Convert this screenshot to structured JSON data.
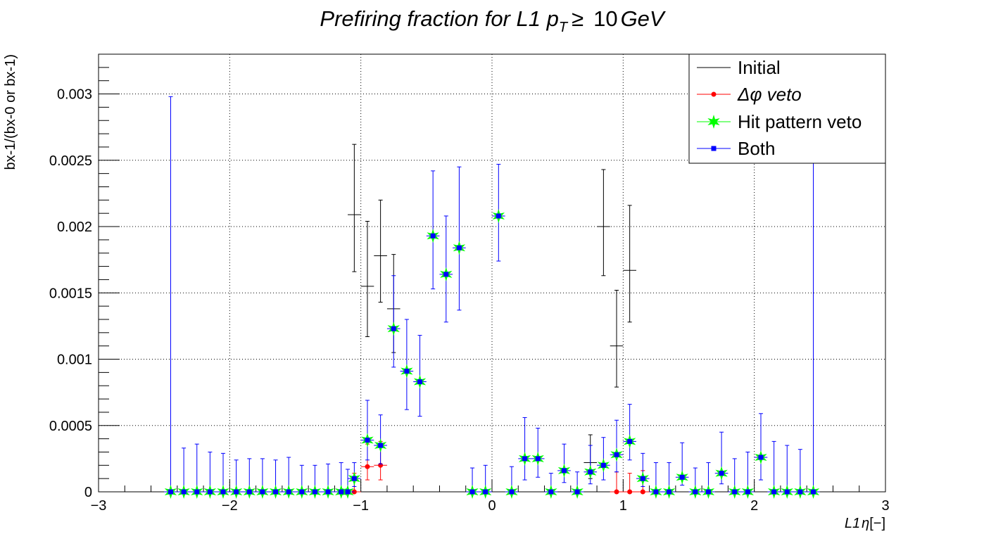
{
  "chart_data": {
    "type": "scatter",
    "title": {
      "prefix": "Prefiring fraction for ",
      "var": "L1 p",
      "sub": "T",
      "rel": "≥",
      "num": "10",
      "unit": "GeV"
    },
    "xlabel": {
      "prefix": "L1",
      "sym": "η",
      "suffix": "[−]"
    },
    "ylabel": "bx-1/(bx-0 or bx-1)",
    "xlim": [
      -3,
      3
    ],
    "ylim": [
      0,
      0.0033
    ],
    "grid": true,
    "legend_position": "top-right",
    "x_ticks": [
      -3,
      -2,
      -1,
      0,
      1,
      2,
      3
    ],
    "x_tick_labels": [
      "−3",
      "−2",
      "−1",
      "0",
      "1",
      "2",
      "3"
    ],
    "y_ticks": [
      0,
      0.0005,
      0.001,
      0.0015,
      0.002,
      0.0025,
      0.003
    ],
    "y_tick_labels": [
      "0",
      "0.0005",
      "0.001",
      "0.0015",
      "0.002",
      "0.0025",
      "0.003"
    ],
    "bin_half_width": 0.05,
    "series": [
      {
        "name": "Initial",
        "color": "#000000",
        "marker": "none",
        "points": [
          {
            "x": -1.05,
            "y": 0.00209,
            "lo": 0.00166,
            "hi": 0.00262
          },
          {
            "x": -0.95,
            "y": 0.00155,
            "lo": 0.00117,
            "hi": 0.00204
          },
          {
            "x": -0.85,
            "y": 0.00178,
            "lo": 0.00143,
            "hi": 0.0022
          },
          {
            "x": -0.75,
            "y": 0.00138,
            "lo": 0.00105,
            "hi": 0.00179
          },
          {
            "x": 0.85,
            "y": 0.002,
            "lo": 0.00163,
            "hi": 0.00243
          },
          {
            "x": 0.95,
            "y": 0.0011,
            "lo": 0.00079,
            "hi": 0.00152
          },
          {
            "x": 1.05,
            "y": 0.00167,
            "lo": 0.00128,
            "hi": 0.00216
          },
          {
            "x": 0.75,
            "y": 0.00022,
            "lo": 0.0001,
            "hi": 0.00043
          }
        ]
      },
      {
        "name": "Δφ veto",
        "color": "#ff0000",
        "marker": "circle",
        "points": [
          {
            "x": -1.05,
            "y": 0.0,
            "lo": 0.0,
            "hi": 0.00014
          },
          {
            "x": -0.95,
            "y": 0.00019,
            "lo": 9e-05,
            "hi": 0.00036
          },
          {
            "x": -0.85,
            "y": 0.0002,
            "lo": 9e-05,
            "hi": 0.00038
          },
          {
            "x": 0.95,
            "y": 0.0,
            "lo": 0.0,
            "hi": 0.00015
          },
          {
            "x": 1.05,
            "y": 0.0,
            "lo": 0.0,
            "hi": 0.00014
          },
          {
            "x": 1.15,
            "y": 0.0,
            "lo": 0.0,
            "hi": 0.00016
          }
        ]
      },
      {
        "name": "Hit pattern veto",
        "color": "#00ff00",
        "marker": "star",
        "same_as": "Both"
      },
      {
        "name": "Both",
        "color": "#0000ff",
        "marker": "square",
        "points": [
          {
            "x": -2.45,
            "y": 0.0,
            "lo": 0.0,
            "hi": 0.00298
          },
          {
            "x": -2.35,
            "y": 0.0,
            "lo": 0.0,
            "hi": 0.00033
          },
          {
            "x": -2.25,
            "y": 0.0,
            "lo": 0.0,
            "hi": 0.00036
          },
          {
            "x": -2.15,
            "y": 0.0,
            "lo": 0.0,
            "hi": 0.0003
          },
          {
            "x": -2.05,
            "y": 0.0,
            "lo": 0.0,
            "hi": 0.00029
          },
          {
            "x": -1.95,
            "y": 0.0,
            "lo": 0.0,
            "hi": 0.00024
          },
          {
            "x": -1.85,
            "y": 0.0,
            "lo": 0.0,
            "hi": 0.00025
          },
          {
            "x": -1.75,
            "y": 0.0,
            "lo": 0.0,
            "hi": 0.00025
          },
          {
            "x": -1.65,
            "y": 0.0,
            "lo": 0.0,
            "hi": 0.00024
          },
          {
            "x": -1.55,
            "y": 0.0,
            "lo": 0.0,
            "hi": 0.00026
          },
          {
            "x": -1.45,
            "y": 0.0,
            "lo": 0.0,
            "hi": 0.0002
          },
          {
            "x": -1.35,
            "y": 0.0,
            "lo": 0.0,
            "hi": 0.0002
          },
          {
            "x": -1.25,
            "y": 0.0,
            "lo": 0.0,
            "hi": 0.00021
          },
          {
            "x": -1.15,
            "y": 0.0,
            "lo": 0.0,
            "hi": 0.00022
          },
          {
            "x": -1.1,
            "y": 0.0,
            "lo": 0.0,
            "hi": 0.00017
          },
          {
            "x": -1.05,
            "y": 0.0001,
            "lo": 4e-05,
            "hi": 0.00022
          },
          {
            "x": -0.95,
            "y": 0.00039,
            "lo": 0.00024,
            "hi": 0.00069
          },
          {
            "x": -0.85,
            "y": 0.00035,
            "lo": 0.00021,
            "hi": 0.00058
          },
          {
            "x": -0.75,
            "y": 0.00123,
            "lo": 0.00094,
            "hi": 0.00163
          },
          {
            "x": -0.65,
            "y": 0.00091,
            "lo": 0.00062,
            "hi": 0.0013
          },
          {
            "x": -0.55,
            "y": 0.00083,
            "lo": 0.00057,
            "hi": 0.00118
          },
          {
            "x": -0.45,
            "y": 0.00193,
            "lo": 0.00153,
            "hi": 0.00242
          },
          {
            "x": -0.35,
            "y": 0.00164,
            "lo": 0.00128,
            "hi": 0.00208
          },
          {
            "x": -0.25,
            "y": 0.00184,
            "lo": 0.00137,
            "hi": 0.00245
          },
          {
            "x": -0.15,
            "y": 0.0,
            "lo": 0.0,
            "hi": 0.00018
          },
          {
            "x": -0.05,
            "y": 0.0,
            "lo": 0.0,
            "hi": 0.0002
          },
          {
            "x": 0.05,
            "y": 0.00208,
            "lo": 0.00174,
            "hi": 0.00247
          },
          {
            "x": 0.15,
            "y": 0.0,
            "lo": 0.0,
            "hi": 0.00019
          },
          {
            "x": 0.25,
            "y": 0.00025,
            "lo": 9e-05,
            "hi": 0.00056
          },
          {
            "x": 0.35,
            "y": 0.00025,
            "lo": 0.00011,
            "hi": 0.00048
          },
          {
            "x": 0.45,
            "y": 0.0,
            "lo": 0.0,
            "hi": 0.00014
          },
          {
            "x": 0.55,
            "y": 0.00016,
            "lo": 7e-05,
            "hi": 0.00036
          },
          {
            "x": 0.65,
            "y": 0.0,
            "lo": 0.0,
            "hi": 0.00015
          },
          {
            "x": 0.75,
            "y": 0.00015,
            "lo": 6e-05,
            "hi": 0.00035
          },
          {
            "x": 0.85,
            "y": 0.0002,
            "lo": 9e-05,
            "hi": 0.00041
          },
          {
            "x": 0.95,
            "y": 0.00028,
            "lo": 0.00015,
            "hi": 0.00054
          },
          {
            "x": 1.05,
            "y": 0.00038,
            "lo": 0.00024,
            "hi": 0.00066
          },
          {
            "x": 1.15,
            "y": 0.0001,
            "lo": 4e-05,
            "hi": 0.00029
          },
          {
            "x": 1.25,
            "y": 0.0,
            "lo": 0.0,
            "hi": 0.00022
          },
          {
            "x": 1.35,
            "y": 0.0,
            "lo": 0.0,
            "hi": 0.00022
          },
          {
            "x": 1.45,
            "y": 0.00011,
            "lo": 5e-05,
            "hi": 0.00037
          },
          {
            "x": 1.55,
            "y": 0.0,
            "lo": 0.0,
            "hi": 0.00018
          },
          {
            "x": 1.65,
            "y": 0.0,
            "lo": 0.0,
            "hi": 0.00022
          },
          {
            "x": 1.75,
            "y": 0.00014,
            "lo": 6e-05,
            "hi": 0.00045
          },
          {
            "x": 1.85,
            "y": 0.0,
            "lo": 0.0,
            "hi": 0.00025
          },
          {
            "x": 1.95,
            "y": 0.0,
            "lo": 0.0,
            "hi": 0.0003
          },
          {
            "x": 2.05,
            "y": 0.00026,
            "lo": 9e-05,
            "hi": 0.00059
          },
          {
            "x": 2.15,
            "y": 0.0,
            "lo": 0.0,
            "hi": 0.00038
          },
          {
            "x": 2.25,
            "y": 0.0,
            "lo": 0.0,
            "hi": 0.00035
          },
          {
            "x": 2.35,
            "y": 0.0,
            "lo": 0.0,
            "hi": 0.00032
          },
          {
            "x": 2.45,
            "y": 0.0,
            "lo": 0.0,
            "hi": 0.0026
          }
        ]
      }
    ]
  }
}
